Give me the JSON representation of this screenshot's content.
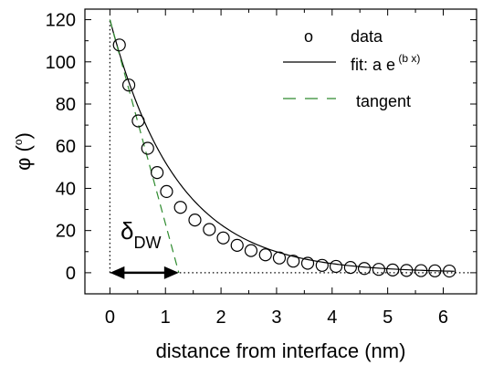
{
  "chart_data": {
    "type": "scatter",
    "xlabel": "distance from interface (nm)",
    "ylabel": {
      "main": "φ (",
      "sup": "o",
      "tail": ")"
    },
    "xlim": [
      -0.45,
      6.6
    ],
    "ylim": [
      -10,
      125
    ],
    "x_ticks": [
      0,
      1,
      2,
      3,
      4,
      5,
      6
    ],
    "y_ticks": [
      0,
      20,
      40,
      60,
      80,
      100,
      120
    ],
    "grid": false,
    "legend_position": "top-right",
    "legend": [
      {
        "symbol": "o",
        "label": "data"
      },
      {
        "symbol": "solid-line",
        "label": "fit: a e",
        "sup": "(b x)"
      },
      {
        "symbol": "dashed-line",
        "label": "tangent"
      }
    ],
    "series": [
      {
        "name": "data",
        "marker": "open-circle",
        "x": [
          0.17,
          0.34,
          0.51,
          0.68,
          0.85,
          1.02,
          1.27,
          1.53,
          1.79,
          2.04,
          2.29,
          2.54,
          2.8,
          3.05,
          3.3,
          3.56,
          3.82,
          4.07,
          4.33,
          4.58,
          4.84,
          5.09,
          5.34,
          5.6,
          5.85,
          6.11
        ],
        "y": [
          108,
          89,
          72,
          59,
          47.5,
          38.5,
          31,
          25,
          20.5,
          16.5,
          13,
          10.5,
          8.5,
          7,
          5.5,
          4.5,
          3.5,
          3,
          2.5,
          2,
          1.6,
          1.3,
          1.1,
          1,
          0.9,
          0.8
        ]
      },
      {
        "name": "fit",
        "style": "solid-line",
        "function": "a*exp(b*x)",
        "a": 120,
        "b": -0.83,
        "x_range": [
          0,
          6.2
        ]
      },
      {
        "name": "tangent",
        "style": "dashed-line",
        "color": "#2e8b2e",
        "x": [
          0,
          1.24
        ],
        "y": [
          120,
          0
        ]
      }
    ],
    "reference_lines": [
      {
        "orientation": "vertical",
        "x": 0,
        "y_range": [
          0,
          120
        ],
        "style": "dotted"
      },
      {
        "orientation": "horizontal",
        "y": 0,
        "x_range": [
          0,
          6.5
        ],
        "style": "dotted"
      }
    ],
    "annotation": {
      "text": "δ",
      "sub": "DW",
      "arrow": {
        "x": [
          0,
          1.24
        ],
        "y": 0,
        "style": "double-headed"
      }
    }
  }
}
